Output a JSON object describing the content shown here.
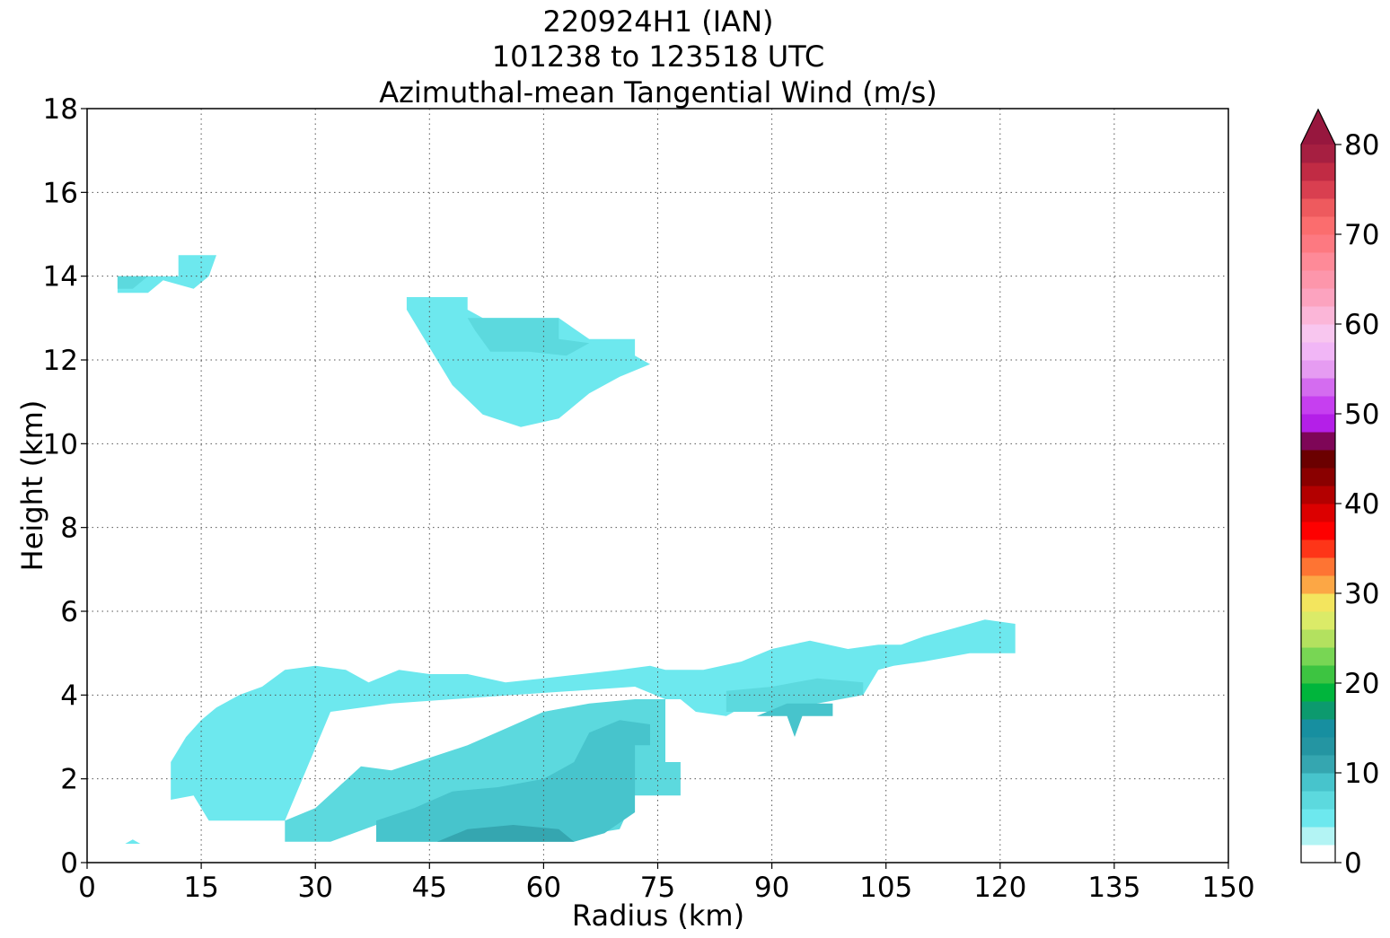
{
  "chart_data": {
    "type": "contour",
    "title_lines": [
      "220924H1 (IAN)",
      "101238 to 123518 UTC",
      "Azimuthal-mean Tangential Wind (m/s)"
    ],
    "xlabel": "Radius (km)",
    "ylabel": "Height (km)",
    "xlim": [
      0,
      150
    ],
    "ylim": [
      0,
      18
    ],
    "xticks": [
      0,
      15,
      30,
      45,
      60,
      75,
      90,
      105,
      120,
      135,
      150
    ],
    "yticks": [
      0,
      2,
      4,
      6,
      8,
      10,
      12,
      14,
      16,
      18
    ],
    "grid": true,
    "colorbar": {
      "min": 0,
      "max": 80,
      "step": 2,
      "extend": "max",
      "ticks": [
        0,
        10,
        20,
        30,
        40,
        50,
        60,
        70,
        80
      ],
      "colors": [
        "#ffffff",
        "#b3f4f4",
        "#6de8ee",
        "#5cd9de",
        "#47c4cc",
        "#35a6b0",
        "#2495a2",
        "#178fa0",
        "#0c9a6e",
        "#00b53c",
        "#3dc441",
        "#78d654",
        "#b3e15f",
        "#dbeb68",
        "#f3e55e",
        "#fca745",
        "#fe7433",
        "#fe3518",
        "#fe0000",
        "#dc0000",
        "#b30000",
        "#8a0000",
        "#6b0000",
        "#7e0657",
        "#b41fe8",
        "#c63ff0",
        "#d46cf0",
        "#e69cf2",
        "#f1b6f6",
        "#f8c6ef",
        "#fbb6d8",
        "#fca3bf",
        "#fd96ab",
        "#fe8a98",
        "#fd7981",
        "#fb6d6e",
        "#ee5a5e",
        "#d93f50",
        "#c12b44",
        "#a61f41"
      ],
      "extend_color": "#97173e"
    },
    "regions": [
      {
        "level": 2,
        "points": [
          [
            11,
            1.5
          ],
          [
            11,
            2.4
          ],
          [
            13,
            3.0
          ],
          [
            15,
            3.4
          ],
          [
            17,
            3.7
          ],
          [
            20,
            4.0
          ],
          [
            23,
            4.2
          ],
          [
            26,
            4.6
          ],
          [
            30,
            4.7
          ],
          [
            34,
            4.6
          ],
          [
            37,
            4.3
          ],
          [
            41,
            4.6
          ],
          [
            45,
            4.5
          ],
          [
            50,
            4.5
          ],
          [
            55,
            4.3
          ],
          [
            60,
            4.4
          ],
          [
            65,
            4.5
          ],
          [
            70,
            4.6
          ],
          [
            74,
            4.7
          ],
          [
            76,
            4.6
          ],
          [
            81,
            4.6
          ],
          [
            86,
            4.8
          ],
          [
            90,
            5.1
          ],
          [
            95,
            5.3
          ],
          [
            100,
            5.1
          ],
          [
            104,
            5.2
          ],
          [
            107,
            5.2
          ],
          [
            110,
            5.4
          ],
          [
            114,
            5.6
          ],
          [
            118,
            5.8
          ],
          [
            122,
            5.7
          ],
          [
            122,
            5.0
          ],
          [
            116,
            5.0
          ],
          [
            110,
            4.8
          ],
          [
            106,
            4.7
          ],
          [
            104,
            4.6
          ],
          [
            102,
            4.0
          ],
          [
            88,
            3.9
          ],
          [
            84,
            3.5
          ],
          [
            80,
            3.6
          ],
          [
            78,
            3.9
          ],
          [
            76,
            3.9
          ],
          [
            72,
            4.2
          ],
          [
            64,
            4.1
          ],
          [
            56,
            4.0
          ],
          [
            48,
            3.9
          ],
          [
            40,
            3.8
          ],
          [
            32,
            3.6
          ],
          [
            26,
            1.0
          ],
          [
            16,
            1.0
          ],
          [
            14,
            1.6
          ]
        ]
      },
      {
        "level": 3,
        "points": [
          [
            26,
            0.5
          ],
          [
            26,
            1.0
          ],
          [
            30,
            1.3
          ],
          [
            33,
            1.8
          ],
          [
            36,
            2.3
          ],
          [
            40,
            2.2
          ],
          [
            45,
            2.5
          ],
          [
            50,
            2.8
          ],
          [
            55,
            3.2
          ],
          [
            60,
            3.6
          ],
          [
            66,
            3.8
          ],
          [
            72,
            3.9
          ],
          [
            76,
            3.9
          ],
          [
            76,
            2.4
          ],
          [
            78,
            2.4
          ],
          [
            78,
            1.6
          ],
          [
            72,
            1.6
          ],
          [
            70,
            0.8
          ],
          [
            60,
            0.5
          ],
          [
            50,
            0.5
          ],
          [
            38,
            0.5
          ],
          [
            38,
            0.9
          ],
          [
            32,
            0.5
          ]
        ]
      },
      {
        "level": 4,
        "points": [
          [
            38,
            0.5
          ],
          [
            38,
            1.0
          ],
          [
            43,
            1.3
          ],
          [
            48,
            1.7
          ],
          [
            54,
            1.8
          ],
          [
            60,
            2.0
          ],
          [
            64,
            2.4
          ],
          [
            66,
            3.1
          ],
          [
            70,
            3.4
          ],
          [
            74,
            3.3
          ],
          [
            74,
            2.8
          ],
          [
            72,
            2.8
          ],
          [
            72,
            1.2
          ],
          [
            68,
            0.7
          ],
          [
            64,
            0.5
          ]
        ]
      },
      {
        "level": 5,
        "points": [
          [
            46,
            0.5
          ],
          [
            50,
            0.8
          ],
          [
            56,
            0.9
          ],
          [
            62,
            0.8
          ],
          [
            64,
            0.5
          ]
        ]
      },
      {
        "level": 3,
        "points": [
          [
            84,
            3.6
          ],
          [
            84,
            4.1
          ],
          [
            90,
            4.2
          ],
          [
            96,
            4.4
          ],
          [
            102,
            4.3
          ],
          [
            102,
            4.0
          ],
          [
            96,
            3.8
          ],
          [
            92,
            3.6
          ]
        ]
      },
      {
        "level": 4,
        "points": [
          [
            88,
            3.5
          ],
          [
            92,
            3.5
          ],
          [
            93,
            3.0
          ],
          [
            94,
            3.5
          ],
          [
            98,
            3.5
          ],
          [
            98,
            3.8
          ],
          [
            92,
            3.8
          ]
        ]
      },
      {
        "level": 2,
        "points": [
          [
            42,
            13.5
          ],
          [
            50,
            13.5
          ],
          [
            50,
            13.2
          ],
          [
            52,
            13.0
          ],
          [
            62,
            13.0
          ],
          [
            66,
            12.5
          ],
          [
            72,
            12.5
          ],
          [
            72,
            12.1
          ],
          [
            74,
            11.9
          ],
          [
            70,
            11.6
          ],
          [
            66,
            11.2
          ],
          [
            62,
            10.6
          ],
          [
            57,
            10.4
          ],
          [
            52,
            10.7
          ],
          [
            48,
            11.4
          ],
          [
            44,
            12.6
          ],
          [
            42,
            13.2
          ]
        ]
      },
      {
        "level": 3,
        "points": [
          [
            50,
            13.0
          ],
          [
            62,
            13.0
          ],
          [
            62,
            12.5
          ],
          [
            66,
            12.4
          ],
          [
            63,
            12.1
          ],
          [
            58,
            12.2
          ],
          [
            53,
            12.2
          ],
          [
            51,
            12.7
          ]
        ]
      },
      {
        "level": 2,
        "points": [
          [
            4,
            13.6
          ],
          [
            8,
            13.6
          ],
          [
            10,
            13.9
          ],
          [
            14,
            13.7
          ],
          [
            16,
            14.0
          ],
          [
            17,
            14.5
          ],
          [
            12,
            14.5
          ],
          [
            12,
            14.0
          ],
          [
            4,
            14.0
          ]
        ]
      },
      {
        "level": 3,
        "points": [
          [
            4,
            13.7
          ],
          [
            6,
            13.7
          ],
          [
            8,
            14.0
          ],
          [
            4,
            14.0
          ]
        ]
      },
      {
        "level": 2,
        "points": [
          [
            5,
            0.45
          ],
          [
            6,
            0.55
          ],
          [
            7,
            0.45
          ]
        ]
      }
    ]
  }
}
